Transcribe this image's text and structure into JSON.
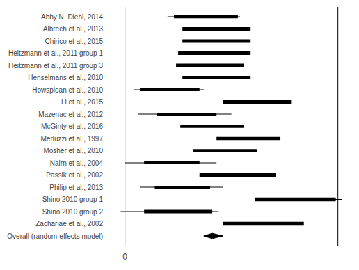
{
  "chart_data": {
    "type": "forest",
    "categories": [
      "Abby N. Diehl, 2014",
      "Albrech et al., 2013",
      "Chirico et al., 2015",
      "Heitzmann et al., 2011 group 1",
      "Heitzmann et al., 2011 group 3",
      "Henselmans et al., 2010",
      "Howspiean et al., 2010",
      "Li et al., 2015",
      "Mazenac et al., 2012",
      "McGinty et al., 2016",
      "Merluzzi et al., 1997",
      "Mosher et al., 2010",
      "Nairn et al., 2004",
      "Passik et al., 2002",
      "Philip et al., 2013",
      "Shino 2010 group 1",
      "Shino 2010 group 2",
      "Zachariae et al., 2002",
      "Overall (random-effects model)"
    ],
    "values": [
      0.38,
      0.43,
      0.43,
      0.42,
      0.4,
      0.43,
      0.21,
      0.62,
      0.29,
      0.41,
      0.58,
      0.47,
      0.22,
      0.53,
      0.27,
      0.8,
      0.25,
      0.65,
      0.41
    ],
    "ci_lower": [
      0.2,
      0.31,
      0.3,
      0.34,
      0.33,
      0.35,
      0.04,
      0.5,
      0.06,
      0.28,
      0.49,
      0.34,
      0.0,
      0.4,
      0.07,
      0.68,
      -0.02,
      0.57,
      0.37
    ],
    "ci_upper": [
      0.54,
      0.55,
      0.55,
      0.5,
      0.47,
      0.51,
      0.37,
      0.72,
      0.5,
      0.53,
      0.67,
      0.59,
      0.43,
      0.65,
      0.46,
      1.02,
      0.44,
      0.72,
      0.46
    ],
    "sizes": [
      0.3,
      0.32,
      0.32,
      0.34,
      0.32,
      0.32,
      0.28,
      0.32,
      0.28,
      0.3,
      0.3,
      0.3,
      0.26,
      0.36,
      0.26,
      0.38,
      0.32,
      0.38,
      0.0
    ],
    "markers": [
      "square",
      "square",
      "square",
      "square",
      "square",
      "square",
      "square",
      "square",
      "square",
      "square",
      "square",
      "square",
      "square",
      "square",
      "square",
      "square",
      "square",
      "square",
      "diamond"
    ],
    "vlines": [
      0.0,
      1.0
    ],
    "color": "#000000",
    "xlim": [
      -0.1,
      1.05
    ],
    "xticks": [
      0
    ],
    "grid": false
  }
}
